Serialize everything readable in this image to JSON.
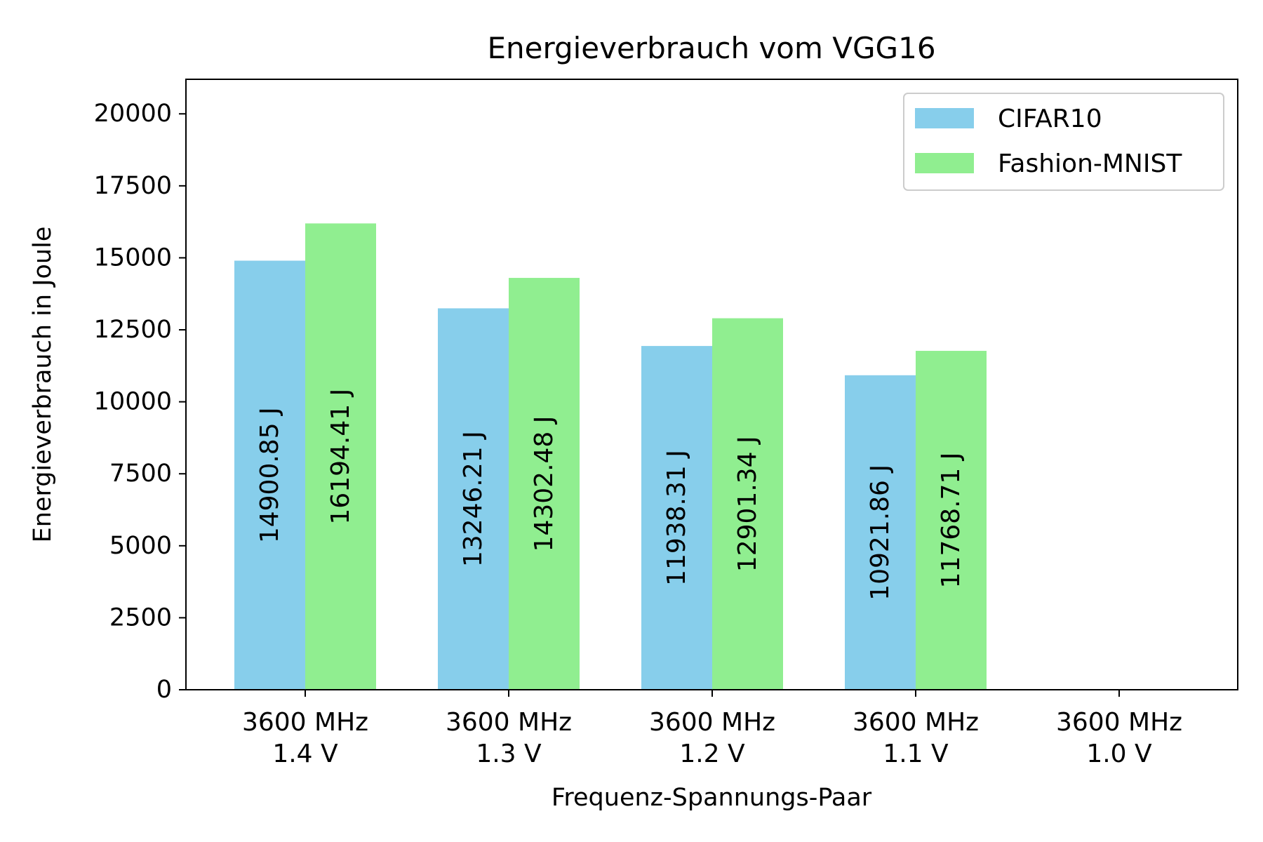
{
  "chart_data": {
    "type": "bar",
    "title": "Energieverbrauch vom VGG16",
    "xlabel": "Frequenz-Spannungs-Paar",
    "ylabel": "Energieverbrauch in Joule",
    "categories": [
      [
        "3600 MHz",
        "1.4 V"
      ],
      [
        "3600 MHz",
        "1.3 V"
      ],
      [
        "3600 MHz",
        "1.2 V"
      ],
      [
        "3600 MHz",
        "1.1 V"
      ],
      [
        "3600 MHz",
        "1.0 V"
      ]
    ],
    "series": [
      {
        "name": "CIFAR10",
        "color": "#87ceeb",
        "values": [
          14900.85,
          13246.21,
          11938.31,
          10921.86,
          null
        ],
        "labels": [
          "14900.85 J",
          "13246.21 J",
          "11938.31 J",
          "10921.86 J",
          null
        ]
      },
      {
        "name": "Fashion-MNIST",
        "color": "#90ee90",
        "values": [
          16194.41,
          14302.48,
          12901.34,
          11768.71,
          null
        ],
        "labels": [
          "16194.41 J",
          "14302.48 J",
          "12901.34 J",
          "11768.71 J",
          null
        ]
      }
    ],
    "ylim": [
      0,
      21200
    ],
    "yticks": [
      0,
      2500,
      5000,
      7500,
      10000,
      12500,
      15000,
      17500,
      20000
    ],
    "ytick_labels": [
      "0",
      "2500",
      "5000",
      "7500",
      "10000",
      "12500",
      "15000",
      "17500",
      "20000"
    ],
    "grid": false,
    "legend_position": "top-right"
  }
}
